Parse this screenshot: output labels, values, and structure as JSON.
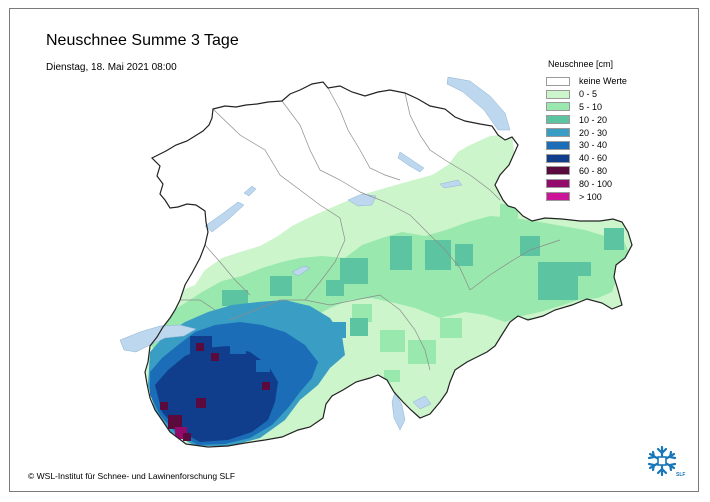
{
  "title": "Neuschnee Summe 3 Tage",
  "subtitle": "Dienstag, 18. Mai 2021 08:00",
  "copyright": "© WSL-Institut für Schnee- und Lawinenforschung SLF",
  "legend": {
    "title": "Neuschnee [cm]",
    "items": [
      {
        "label": "keine Werte",
        "color": "#ffffff"
      },
      {
        "label": "0 - 5",
        "color": "#ccf5cc"
      },
      {
        "label": "5 - 10",
        "color": "#99e8ad"
      },
      {
        "label": "10 - 20",
        "color": "#5cc4a0"
      },
      {
        "label": "20 - 30",
        "color": "#3a9ec4"
      },
      {
        "label": "30 - 40",
        "color": "#1b6db8"
      },
      {
        "label": "40 - 60",
        "color": "#103e8c"
      },
      {
        "label": "60 - 80",
        "color": "#5a0a3c"
      },
      {
        "label": "80 - 100",
        "color": "#930a6a"
      },
      {
        "label": "> 100",
        "color": "#cc1499"
      }
    ]
  },
  "logo": {
    "icon": "slf-snowflake-logo",
    "text": "SLF",
    "color": "#1976b8"
  },
  "map": {
    "lake_color": "#bcd7ee",
    "border_color": "#222222",
    "canton_color": "#8c8c8c"
  }
}
